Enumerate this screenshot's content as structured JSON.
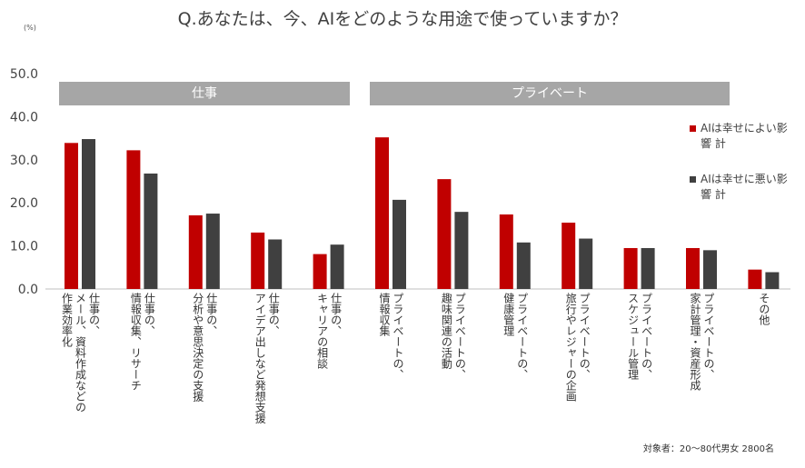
{
  "title": "Q.あなたは、今、AIをどのような用途で使っていますか？",
  "unit": "(%)",
  "groups": [
    {
      "label": "仕事"
    },
    {
      "label": "プライベート"
    }
  ],
  "legend": [
    {
      "label": "AIは幸せによい影響 計",
      "color": "#c00000"
    },
    {
      "label": "AIは幸せに悪い影響 計",
      "color": "#404040"
    }
  ],
  "footnote": "対象者：20～80代男女 2800名",
  "chart_data": {
    "type": "bar",
    "ylim": [
      0,
      50
    ],
    "yticks": [
      "0.0",
      "10.0",
      "20.0",
      "30.0",
      "40.0",
      "50.0"
    ],
    "grid": false,
    "legend_position": "right",
    "categories": [
      "仕事の、\nメール、資料作成などの\n作業効率化",
      "仕事の、\n情報収集、リサーチ",
      "仕事の、\n分析や意思決定の支援",
      "仕事の、\nアイデア出しなど発想支援",
      "仕事の、\nキャリアの相談",
      "プライベートの、\n情報収集",
      "プライベートの、\n趣味関連の活動",
      "プライベートの、\n健康管理",
      "プライベートの、\n旅行やレジャーの企画",
      "プライベートの、\nスケジュール管理",
      "プライベートの、\n家計管理・資産形成",
      "その他"
    ],
    "series": [
      {
        "name": "AIは幸せによい影響 計",
        "color": "#c00000",
        "values": [
          33.9,
          32.2,
          17.1,
          13.1,
          8.1,
          35.2,
          25.5,
          17.3,
          15.4,
          9.5,
          9.5,
          4.5
        ]
      },
      {
        "name": "AIは幸せに悪い影響 計",
        "color": "#404040",
        "values": [
          34.8,
          26.8,
          17.5,
          11.5,
          10.3,
          20.7,
          17.9,
          10.8,
          11.7,
          9.5,
          9.0,
          3.9
        ]
      }
    ]
  }
}
